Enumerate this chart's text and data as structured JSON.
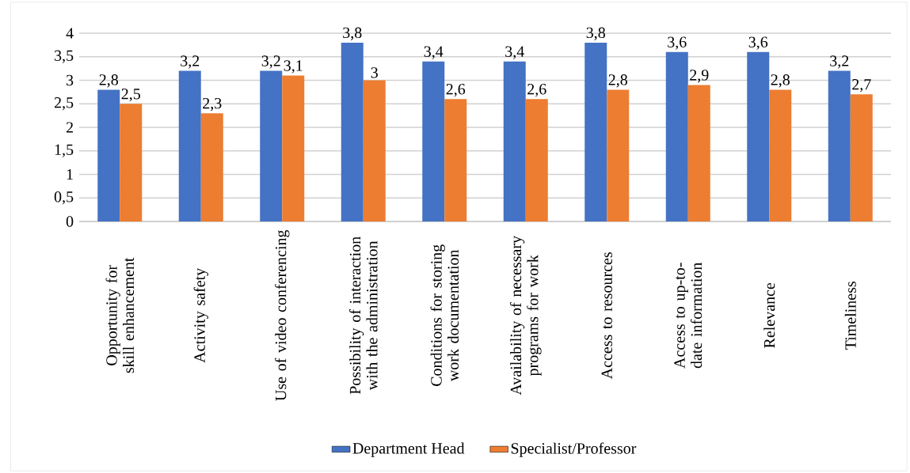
{
  "chart_data": {
    "type": "bar",
    "categories": [
      "Opportunity for skill enhancement",
      "Activity safety",
      "Use of video conferencing",
      "Possibility of interaction with the administration",
      "Conditions for storing work documentation",
      "Availability of necessary programs for work",
      "Access to resources",
      "Access to up-to-date information",
      "Relevance",
      "Timeliness"
    ],
    "series": [
      {
        "name": "Department Head",
        "color": "#4472c4",
        "values": [
          2.8,
          3.2,
          3.2,
          3.8,
          3.4,
          3.4,
          3.8,
          3.6,
          3.6,
          3.2
        ],
        "value_labels": [
          "2,8",
          "3,2",
          "3,2",
          "3,8",
          "3,4",
          "3,4",
          "3,8",
          "3,6",
          "3,6",
          "3,2"
        ]
      },
      {
        "name": "Specialist/Professor",
        "color": "#ed7d31",
        "values": [
          2.5,
          2.3,
          3.1,
          3,
          2.6,
          2.6,
          2.8,
          2.9,
          2.8,
          2.7
        ],
        "value_labels": [
          "2,5",
          "2,3",
          "3,1",
          "3",
          "2,6",
          "2,6",
          "2,8",
          "2,9",
          "2,8",
          "2,7"
        ]
      }
    ],
    "ylim": [
      0,
      4
    ],
    "yticks": [
      0,
      {
        "value": 0.5,
        "label": "0,5"
      },
      1,
      {
        "value": 1.5,
        "label": "1,5"
      },
      2,
      {
        "value": 2.5,
        "label": "2,5"
      },
      3,
      {
        "value": 3.5,
        "label": "3,5"
      },
      4
    ],
    "grid": "y",
    "legend": "bottom"
  }
}
